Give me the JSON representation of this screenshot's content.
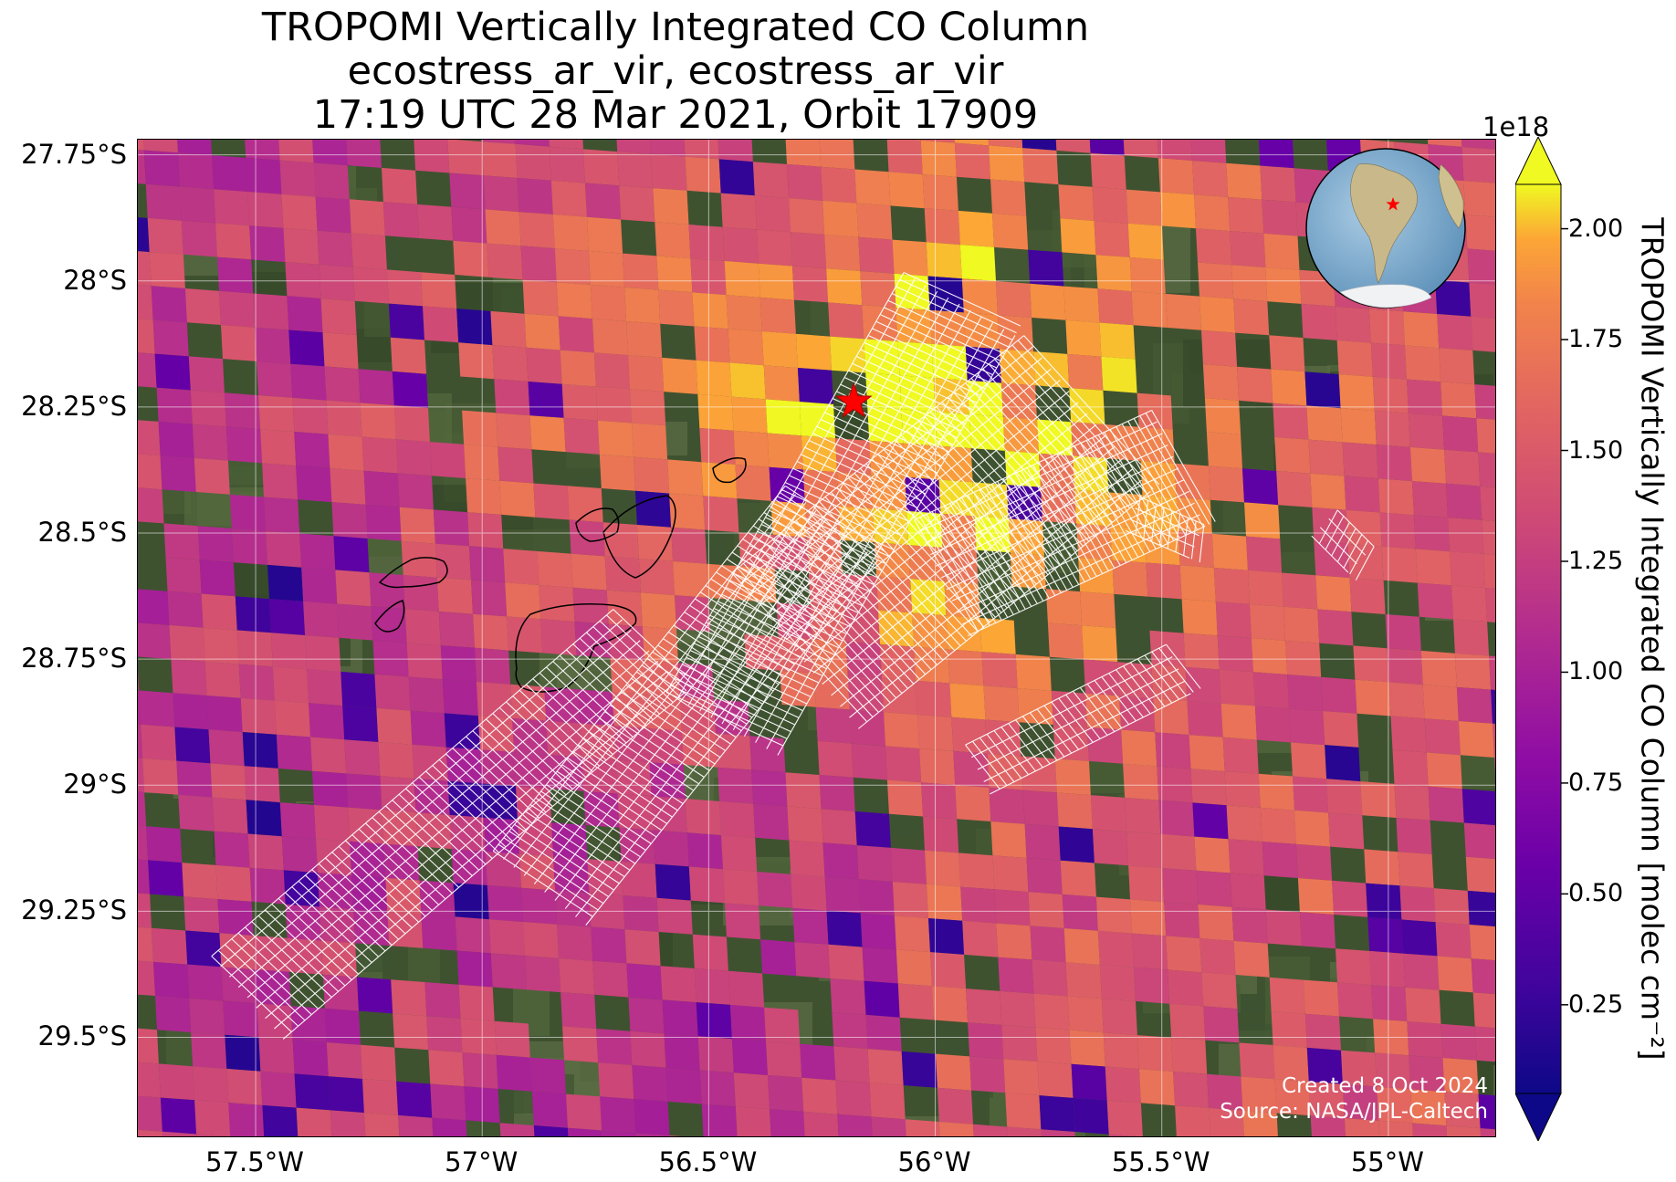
{
  "title": {
    "line1": "TROPOMI Vertically Integrated CO Column",
    "line2": "ecostress_ar_vir, ecostress_ar_vir",
    "line3": "17:19 UTC 28 Mar 2021, Orbit 17909"
  },
  "map": {
    "lat_ticks": [
      "27.75°S",
      "28°S",
      "28.25°S",
      "28.5°S",
      "28.75°S",
      "29°S",
      "29.25°S",
      "29.5°S"
    ],
    "lat_values": [
      -27.75,
      -28.0,
      -28.25,
      -28.5,
      -28.75,
      -29.0,
      -29.25,
      -29.5
    ],
    "lon_ticks": [
      "57.5°W",
      "57°W",
      "56.5°W",
      "56°W",
      "55.5°W",
      "55°W"
    ],
    "lon_values": [
      -57.5,
      -57.0,
      -56.5,
      -56.0,
      -55.5,
      -55.0
    ],
    "extent": {
      "lon_min": -57.76,
      "lon_max": -54.76,
      "lat_max": -27.72,
      "lat_min": -29.7
    },
    "fire_location": {
      "lon": -56.18,
      "lat": -28.24,
      "marker": "red-star"
    },
    "gridlines": true,
    "background": "satellite imagery",
    "credit_line1": "Created 8 Oct 2024",
    "credit_line2": "Source: NASA/JPL-Caltech"
  },
  "colorbar": {
    "label": "TROPOMI Vertically Integrated CO Column [molec cm⁻²]",
    "exponent": "1e18",
    "ticks": [
      "2.00",
      "1.75",
      "1.50",
      "1.25",
      "1.00",
      "0.75",
      "0.50",
      "0.25"
    ],
    "tick_values": [
      2.0,
      1.75,
      1.5,
      1.25,
      1.0,
      0.75,
      0.5,
      0.25
    ],
    "vmin": 0.05,
    "vmax": 2.1,
    "colormap": "plasma",
    "extend": "both"
  },
  "inset": {
    "icon": "globe-icon",
    "region": "South America",
    "marker": "red-star"
  },
  "colors": {
    "cmap_low": "#0d0887",
    "cmap_mid": "#cc4778",
    "cmap_high": "#f0f921",
    "ecostress_outline": "#ffffff",
    "marker": "#ff0000"
  }
}
